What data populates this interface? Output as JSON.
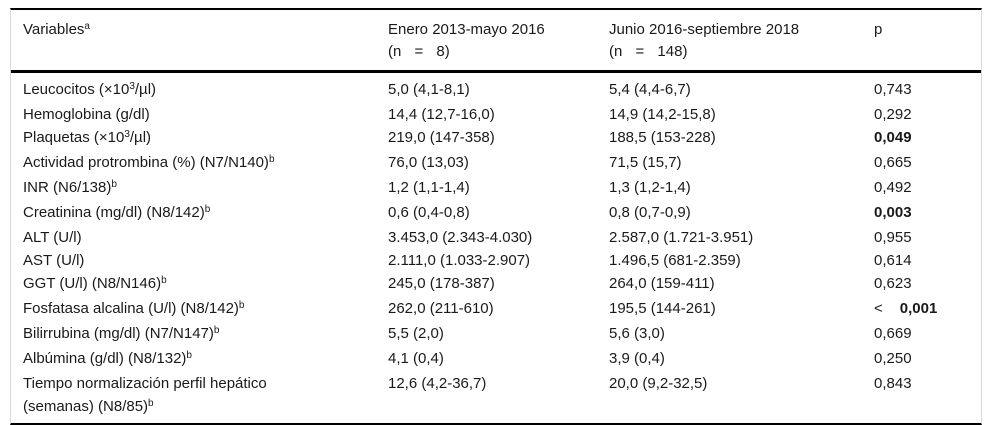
{
  "table": {
    "header": {
      "variables": "Variables^a",
      "period1_line1": "Enero 2013-mayo 2016",
      "period1_line2": "(n = 8)",
      "period2_line1": "Junio 2016-septiembre 2018",
      "period2_line2": "(n = 148)",
      "p": "p"
    },
    "rows": [
      {
        "variable": "Leucocitos (×10^3/µl)",
        "period1": "5,0 (4,1-8,1)",
        "period2": "5,4 (4,4-6,7)",
        "p": "0,743",
        "p_bold": false
      },
      {
        "variable": "Hemoglobina (g/dl)",
        "period1": "14,4 (12,7-16,0)",
        "period2": "14,9 (14,2-15,8)",
        "p": "0,292",
        "p_bold": false
      },
      {
        "variable": "Plaquetas (×10^3/µl)",
        "period1": "219,0 (147-358)",
        "period2": "188,5 (153-228)",
        "p": "0,049",
        "p_bold": true
      },
      {
        "variable": "Actividad protrombina (%) (N7/N140)^b",
        "period1": "76,0 (13,03)",
        "period2": "71,5 (15,7)",
        "p": "0,665",
        "p_bold": false
      },
      {
        "variable": "INR (N6/138)^b",
        "period1": "1,2 (1,1-1,4)",
        "period2": "1,3 (1,2-1,4)",
        "p": "0,492",
        "p_bold": false
      },
      {
        "variable": "Creatinina (mg/dl) (N8/142)^b",
        "period1": "0,6 (0,4-0,8)",
        "period2": "0,8 (0,7-0,9)",
        "p": "0,003",
        "p_bold": true
      },
      {
        "variable": "ALT (U/l)",
        "period1": "3.453,0 (2.343-4.030)",
        "period2": "2.587,0 (1.721-3.951)",
        "p": "0,955",
        "p_bold": false
      },
      {
        "variable": "AST (U/l)",
        "period1": "2.111,0 (1.033-2.907)",
        "period2": "1.496,5 (681-2.359)",
        "p": "0,614",
        "p_bold": false
      },
      {
        "variable": "GGT (U/l) (N8/N146)^b",
        "period1": "245,0 (178-387)",
        "period2": "264,0 (159-411)",
        "p": "0,623",
        "p_bold": false
      },
      {
        "variable": "Fosfatasa alcalina (U/l) (N8/142)^b",
        "period1": "262,0 (211-610)",
        "period2": "195,5 (144-261)",
        "p": "0,001",
        "p_prefix": "<",
        "p_bold": true
      },
      {
        "variable": "Bilirrubina (mg/dl) (N7/N147)^b",
        "period1": "5,5 (2,0)",
        "period2": "5,6 (3,0)",
        "p": "0,669",
        "p_bold": false
      },
      {
        "variable": "Albúmina (g/dl) (N8/132)^b",
        "period1": "4,1 (0,4)",
        "period2": "3,9 (0,4)",
        "p": "0,250",
        "p_bold": false
      },
      {
        "variable": "Tiempo normalización perfil hepático\n(semanas) (N8/85)^b",
        "period1": "12,6 (4,2-36,7)",
        "period2": "20,0 (9,2-32,5)",
        "p": "0,843",
        "p_bold": false
      }
    ]
  }
}
